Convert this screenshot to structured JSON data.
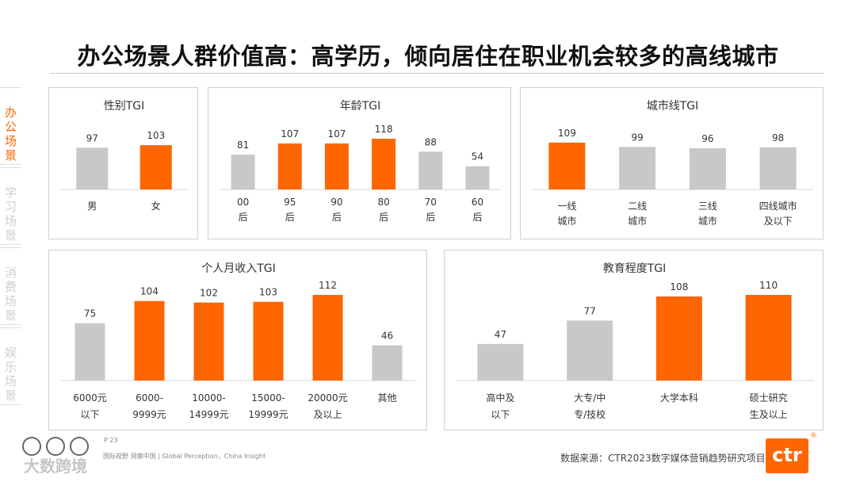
{
  "title": "办公场景人群价值高：高学历，倾向居住在职业机会较多的高线城市",
  "side_tabs": [
    "办公场景",
    "学习场景",
    "消费场景",
    "娱乐场景"
  ],
  "colors": {
    "highlight": "#ff6600",
    "neutral": "#c8c8c8"
  },
  "footer": {
    "source": "数据来源：CTR2023数字媒体营销趋势研究项目",
    "page": "P 23",
    "tagline": "国际视野  洞察中国 | Global Perception，China Insight",
    "logo": "ctr",
    "reg_mark": "®",
    "watermark": "大数跨境"
  },
  "chart_data": [
    {
      "type": "bar",
      "title": "性别TGI",
      "categories": [
        "男",
        "女"
      ],
      "values": [
        97,
        103
      ],
      "highlight": [
        false,
        true
      ],
      "ylim": [
        0,
        118
      ]
    },
    {
      "type": "bar",
      "title": "年龄TGI",
      "categories": [
        "00\n后",
        "95\n后",
        "90\n后",
        "80\n后",
        "70\n后",
        "60\n后"
      ],
      "values": [
        81,
        107,
        107,
        118,
        88,
        54
      ],
      "highlight": [
        false,
        true,
        true,
        true,
        false,
        false
      ],
      "ylim": [
        0,
        118
      ]
    },
    {
      "type": "bar",
      "title": "城市线TGI",
      "categories": [
        "一线\n城市",
        "二线\n城市",
        "三线\n城市",
        "四线城市\n及以下"
      ],
      "values": [
        109,
        99,
        96,
        98
      ],
      "highlight": [
        true,
        false,
        false,
        false
      ],
      "ylim": [
        0,
        118
      ]
    },
    {
      "type": "bar",
      "title": "个人月收入TGI",
      "categories": [
        "6000元\n以下",
        "6000-\n9999元",
        "10000-\n14999元",
        "15000-\n19999元",
        "20000元\n及以上",
        "其他"
      ],
      "values": [
        75,
        104,
        102,
        103,
        112,
        46
      ],
      "highlight": [
        false,
        true,
        true,
        true,
        true,
        false
      ],
      "ylim": [
        0,
        112
      ]
    },
    {
      "type": "bar",
      "title": "教育程度TGI",
      "categories": [
        "高中及\n以下",
        "大专/中\n专/技校",
        "大学本科",
        "硕士研究\n生及以上"
      ],
      "values": [
        47,
        77,
        108,
        110
      ],
      "highlight": [
        false,
        false,
        true,
        true
      ],
      "ylim": [
        0,
        110
      ]
    }
  ]
}
